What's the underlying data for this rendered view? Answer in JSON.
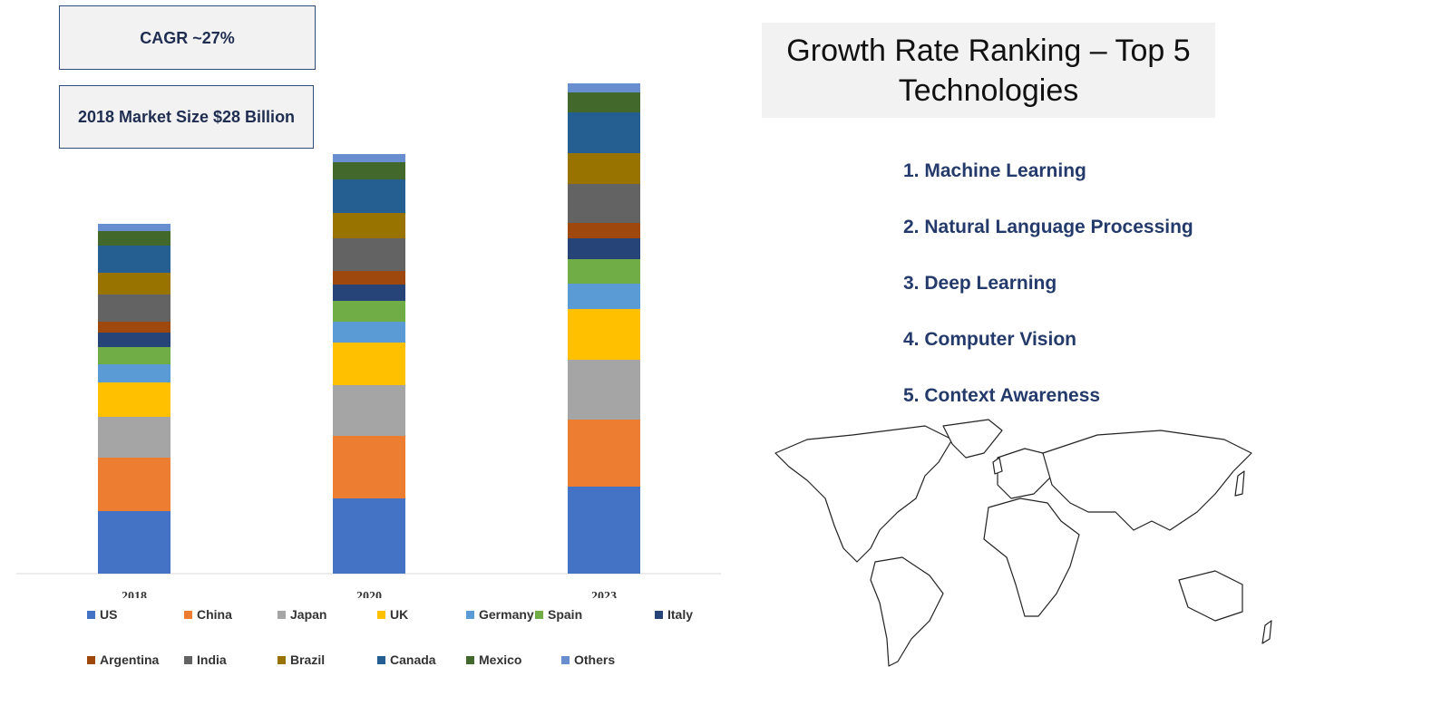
{
  "callouts": {
    "cagr": "CAGR ~27%",
    "market_size": "2018 Market Size $28 Billion"
  },
  "chart_data": {
    "type": "bar",
    "stacked": true,
    "categories": [
      "2018",
      "2020",
      "2023"
    ],
    "legend_position": "bottom",
    "grid": false,
    "series": [
      {
        "name": "US",
        "color": "#4472c4",
        "values": [
          69,
          83,
          96
        ]
      },
      {
        "name": "China",
        "color": "#ed7d31",
        "values": [
          59,
          69,
          74
        ]
      },
      {
        "name": "Japan",
        "color": "#a5a5a5",
        "values": [
          45,
          56,
          66
        ]
      },
      {
        "name": "UK",
        "color": "#ffc000",
        "values": [
          38,
          47,
          56
        ]
      },
      {
        "name": "Germany",
        "color": "#5b9bd5",
        "values": [
          20,
          23,
          28
        ]
      },
      {
        "name": "Spain",
        "color": "#70ad47",
        "values": [
          19,
          23,
          27
        ]
      },
      {
        "name": "Italy",
        "color": "#264478",
        "values": [
          16,
          18,
          23
        ]
      },
      {
        "name": "Argentina",
        "color": "#9e480e",
        "values": [
          12,
          15,
          17
        ]
      },
      {
        "name": "India",
        "color": "#636363",
        "values": [
          30,
          36,
          43
        ]
      },
      {
        "name": "Brazil",
        "color": "#997300",
        "values": [
          24,
          28,
          34
        ]
      },
      {
        "name": "Canada",
        "color": "#255e91",
        "values": [
          30,
          37,
          45
        ]
      },
      {
        "name": "Mexico",
        "color": "#43682b",
        "values": [
          16,
          19,
          22
        ]
      },
      {
        "name": "Others",
        "color": "#698ed0",
        "values": [
          8,
          9,
          10
        ]
      }
    ]
  },
  "ranking": {
    "title": "Growth Rate Ranking – Top 5 Technologies",
    "items": [
      "1. Machine Learning",
      "2. Natural Language Processing",
      "3. Deep Learning",
      "4. Computer Vision",
      "5. Context Awareness"
    ]
  }
}
